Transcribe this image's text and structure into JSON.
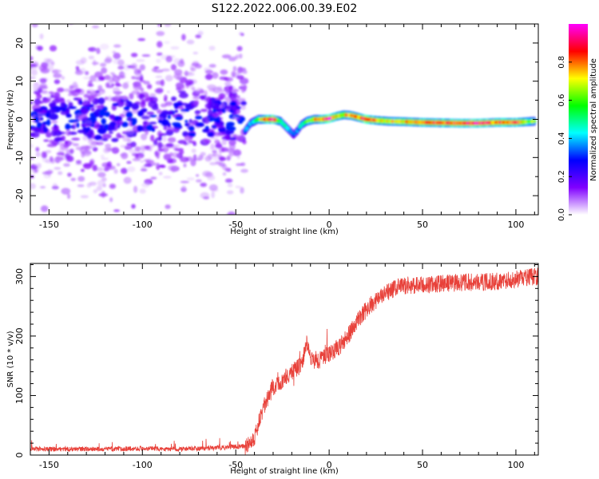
{
  "figure_title": "S122.2022.006.00.39.E02",
  "chart_data": [
    {
      "type": "heatmap",
      "title": "",
      "xlabel": "Height of straight line (km)",
      "ylabel": "Frequency (Hz)",
      "xlim": [
        -160,
        112
      ],
      "ylim": [
        -25,
        25
      ],
      "x_ticks": [
        -150,
        -100,
        -50,
        0,
        50,
        100
      ],
      "y_ticks": [
        -20,
        -10,
        0,
        10,
        20
      ],
      "colorbar": {
        "label": "Normalized spectral amplitude",
        "range": [
          0,
          1
        ],
        "ticks": [
          "0.0",
          "0.2",
          "0.4",
          "0.6",
          "0.8"
        ],
        "colors": [
          "#ffffff",
          "#8000ff",
          "#0000ff",
          "#00ffff",
          "#00ff00",
          "#ffff00",
          "#ff0000",
          "#ff00ff"
        ]
      },
      "noise_region": {
        "x_range": [
          -160,
          -45
        ],
        "freq_center": 0,
        "spread_hz": 25,
        "typical_amplitude": 0.1,
        "max_amplitude": 0.3
      },
      "signal_trace": {
        "x": [
          -45,
          -42,
          -38,
          -34,
          -30,
          -26,
          -22,
          -19,
          -17,
          -15,
          -12,
          -8,
          -4,
          0,
          4,
          8,
          12,
          16,
          20,
          26,
          32,
          40,
          50,
          60,
          70,
          80,
          90,
          100,
          110
        ],
        "freq": [
          -3,
          -1,
          0,
          0,
          0,
          -0.5,
          -2.5,
          -4,
          -3,
          -1.5,
          -0.5,
          0,
          0,
          0.2,
          0.8,
          1.2,
          1,
          0.5,
          0,
          -0.3,
          -0.5,
          -0.6,
          -0.8,
          -0.9,
          -1,
          -1,
          -0.8,
          -0.8,
          -0.5
        ],
        "amplitude": [
          0.35,
          0.4,
          0.55,
          0.8,
          0.95,
          0.55,
          0.4,
          0.3,
          0.35,
          0.45,
          0.55,
          0.7,
          0.8,
          0.95,
          0.75,
          0.7,
          0.75,
          0.8,
          0.95,
          0.75,
          0.7,
          0.75,
          0.8,
          0.85,
          0.85,
          0.9,
          0.8,
          0.85,
          0.6
        ]
      }
    },
    {
      "type": "line",
      "title": "",
      "xlabel": "Height of straight line (km)",
      "ylabel": "SNR (10 * v/v)",
      "xlim": [
        -160,
        112
      ],
      "ylim": [
        0,
        322
      ],
      "x_ticks": [
        -150,
        -100,
        -50,
        0,
        50,
        100
      ],
      "y_ticks": [
        0,
        100,
        200,
        300
      ],
      "color": "#e8413a",
      "series": [
        {
          "x": [
            -160,
            -140,
            -120,
            -100,
            -80,
            -60,
            -45,
            -40,
            -35,
            -30,
            -25,
            -20,
            -15,
            -12,
            -10,
            -5,
            0,
            5,
            10,
            15,
            20,
            25,
            30,
            35,
            40,
            50,
            60,
            70,
            80,
            90,
            100,
            110
          ],
          "values": [
            10,
            10,
            10,
            11,
            10,
            12,
            15,
            30,
            80,
            115,
            125,
            140,
            150,
            190,
            160,
            160,
            170,
            180,
            200,
            225,
            245,
            260,
            270,
            280,
            285,
            285,
            288,
            290,
            290,
            292,
            295,
            300
          ]
        }
      ],
      "noise_amplitude_low": 4,
      "noise_amplitude_high": 15
    }
  ]
}
